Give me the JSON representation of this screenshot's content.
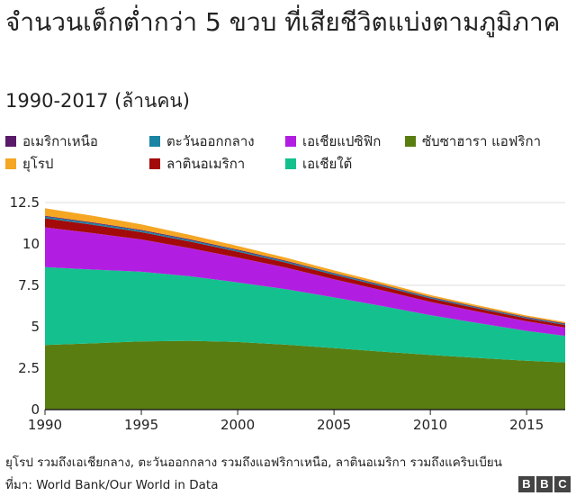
{
  "header": {
    "title": "จำนวนเด็กต่ำกว่า 5 ขวบ ที่เสียชีวิตแบ่งตามภูมิภาค",
    "subtitle": "1990-2017 (ล้านคน)"
  },
  "footer": {
    "note": "ยุโรป รวมถึงเอเชียกลาง, ตะวันออกกลาง รวมถึงแอฟริกาเหนือ, ลาตินอเมริกา รวมถึงแคริบเบียน",
    "source": "ที่มา: World Bank/Our World in Data",
    "logo_letters": [
      "B",
      "B",
      "C"
    ]
  },
  "chart_data": {
    "type": "area",
    "stacked": true,
    "title": "จำนวนเด็กต่ำกว่า 5 ขวบ ที่เสียชีวิตแบ่งตามภูมิภาค",
    "subtitle": "1990-2017 (ล้านคน)",
    "xlim": [
      1990,
      2017
    ],
    "ylim": [
      0,
      12.5
    ],
    "x_ticks": [
      1990,
      1995,
      2000,
      2005,
      2010,
      2015
    ],
    "y_ticks": [
      0,
      2.5,
      5,
      7.5,
      10,
      12.5
    ],
    "y_tick_labels": [
      "0",
      "2.5",
      "5",
      "7.5",
      "10",
      "12.5"
    ],
    "grid": "horizontal",
    "legend_position": "top",
    "x": [
      1990,
      1992.5,
      1995,
      1997.5,
      2000,
      2002.5,
      2005,
      2007.5,
      2010,
      2012.5,
      2015,
      2017
    ],
    "series": [
      {
        "name": "ซับซาฮารา แอฟริกา",
        "color": "#5a7d12",
        "values": [
          3.9,
          4.0,
          4.12,
          4.15,
          4.08,
          3.92,
          3.72,
          3.5,
          3.3,
          3.12,
          2.95,
          2.85
        ]
      },
      {
        "name": "เอเชียใต้",
        "color": "#14c18e",
        "values": [
          4.7,
          4.45,
          4.2,
          3.9,
          3.6,
          3.35,
          3.05,
          2.75,
          2.4,
          2.1,
          1.8,
          1.6
        ]
      },
      {
        "name": "เอเชียแปซิฟิก",
        "color": "#b21ee1",
        "values": [
          2.4,
          2.2,
          1.95,
          1.7,
          1.5,
          1.3,
          1.1,
          0.95,
          0.8,
          0.68,
          0.58,
          0.5
        ]
      },
      {
        "name": "ลาตินอเมริกา",
        "color": "#a30a0a",
        "values": [
          0.55,
          0.5,
          0.44,
          0.4,
          0.35,
          0.3,
          0.27,
          0.24,
          0.21,
          0.19,
          0.17,
          0.16
        ]
      },
      {
        "name": "ตะวันออกกลาง",
        "color": "#1a84a3",
        "values": [
          0.1,
          0.1,
          0.09,
          0.08,
          0.08,
          0.07,
          0.07,
          0.06,
          0.06,
          0.05,
          0.05,
          0.05
        ]
      },
      {
        "name": "อเมริกาเหนือ",
        "color": "#5a1a6a",
        "values": [
          0.05,
          0.05,
          0.05,
          0.05,
          0.05,
          0.05,
          0.04,
          0.04,
          0.04,
          0.04,
          0.04,
          0.04
        ]
      },
      {
        "name": "ยุโรป",
        "color": "#f5a623",
        "values": [
          0.45,
          0.4,
          0.33,
          0.27,
          0.22,
          0.18,
          0.15,
          0.13,
          0.11,
          0.1,
          0.09,
          0.08
        ]
      }
    ]
  },
  "legend": [
    {
      "label": "อเมริกาเหนือ",
      "color": "#5a1a6a"
    },
    {
      "label": "ตะวันออกกลาง",
      "color": "#1a84a3"
    },
    {
      "label": "เอเชียแปซิฟิก",
      "color": "#b21ee1"
    },
    {
      "label": "ซับซาฮารา แอฟริกา",
      "color": "#5a7d12"
    },
    {
      "label": "ยุโรป",
      "color": "#f5a623"
    },
    {
      "label": "ลาตินอเมริกา",
      "color": "#a30a0a"
    },
    {
      "label": "เอเชียใต้",
      "color": "#14c18e"
    }
  ]
}
